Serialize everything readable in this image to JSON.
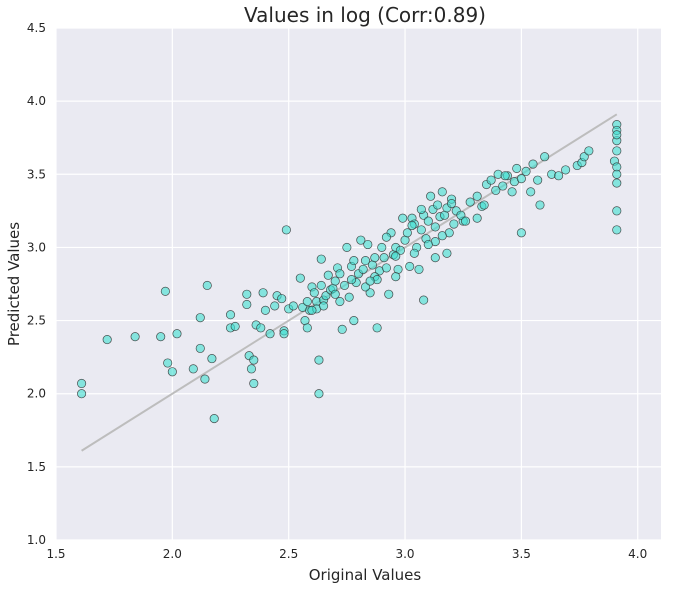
{
  "chart_data": {
    "type": "scatter",
    "title": "Values in log   (Corr:0.89)",
    "xlabel": "Original Values",
    "ylabel": "Predicted Values",
    "xlim": [
      1.5,
      4.1
    ],
    "ylim": [
      1.0,
      4.5
    ],
    "xticks": [
      "1.5",
      "2.0",
      "2.5",
      "3.0",
      "3.5",
      "4.0"
    ],
    "yticks": [
      "1.0",
      "1.5",
      "2.0",
      "2.5",
      "3.0",
      "3.5",
      "4.0",
      "4.5"
    ],
    "grid": true,
    "legend": "none",
    "point_color": "#40e0d0",
    "point_edge_color": "#333333",
    "plot_background": "#eaeaf2",
    "fit_line_color": "#bdbdbd",
    "fit_line": {
      "x": [
        1.61,
        3.91
      ],
      "y": [
        1.61,
        3.91
      ]
    },
    "series": [
      {
        "x": [
          1.61,
          1.61,
          1.72,
          1.84,
          1.95,
          1.97,
          1.98,
          2.0,
          2.02,
          2.09,
          2.12,
          2.12,
          2.14,
          2.15,
          2.17,
          2.18,
          2.25,
          2.25,
          2.27,
          2.32,
          2.32,
          2.33,
          2.34,
          2.35,
          2.35,
          2.36,
          2.38,
          2.39,
          2.4,
          2.42,
          2.44,
          2.45,
          2.47,
          2.48,
          2.48,
          2.49,
          2.5,
          2.52,
          2.55,
          2.56,
          2.57,
          2.58,
          2.58,
          2.59,
          2.6,
          2.61,
          2.62,
          2.62,
          2.63,
          2.63,
          2.64,
          2.64,
          2.65,
          2.66,
          2.67,
          2.68,
          2.69,
          2.7,
          2.71,
          2.72,
          2.73,
          2.74,
          2.75,
          2.76,
          2.77,
          2.78,
          2.79,
          2.8,
          2.81,
          2.82,
          2.83,
          2.84,
          2.85,
          2.86,
          2.87,
          2.88,
          2.89,
          2.9,
          2.91,
          2.92,
          2.93,
          2.94,
          2.95,
          2.96,
          2.97,
          2.98,
          2.99,
          3.0,
          3.01,
          3.02,
          3.03,
          3.04,
          3.05,
          3.06,
          3.07,
          3.08,
          3.09,
          3.1,
          3.11,
          3.12,
          3.13,
          3.14,
          3.15,
          3.16,
          3.17,
          3.18,
          3.19,
          3.2,
          3.21,
          3.22,
          3.25,
          3.28,
          3.31,
          3.31,
          3.33,
          3.35,
          3.37,
          3.39,
          3.4,
          3.42,
          3.44,
          3.46,
          3.47,
          3.48,
          3.5,
          3.5,
          3.52,
          3.54,
          3.55,
          3.57,
          3.58,
          3.6,
          3.63,
          3.66,
          3.69,
          3.74,
          3.76,
          3.77,
          3.79,
          3.9,
          3.91,
          3.91,
          3.91,
          3.91,
          3.91,
          3.91,
          3.91,
          3.91,
          3.91,
          3.91,
          2.78,
          2.83,
          2.87,
          2.92,
          2.96,
          3.03,
          3.07,
          3.13,
          3.18,
          3.08,
          3.13,
          2.88,
          2.96,
          2.72,
          2.65,
          2.6,
          2.7,
          2.77,
          2.85,
          3.04,
          3.1,
          3.16,
          3.2,
          3.24,
          3.26,
          3.34,
          3.43
        ],
        "y": [
          2.07,
          2.0,
          2.37,
          2.39,
          2.39,
          2.7,
          2.21,
          2.15,
          2.41,
          2.17,
          2.31,
          2.52,
          2.1,
          2.74,
          2.24,
          1.83,
          2.54,
          2.45,
          2.46,
          2.68,
          2.61,
          2.26,
          2.17,
          2.07,
          2.23,
          2.47,
          2.45,
          2.69,
          2.57,
          2.41,
          2.6,
          2.67,
          2.65,
          2.43,
          2.41,
          3.12,
          2.58,
          2.6,
          2.79,
          2.59,
          2.5,
          2.63,
          2.45,
          2.57,
          2.73,
          2.69,
          2.63,
          2.58,
          2.0,
          2.23,
          2.74,
          2.92,
          2.64,
          2.67,
          2.81,
          2.71,
          2.72,
          2.77,
          2.86,
          2.82,
          2.44,
          2.74,
          3.0,
          2.66,
          2.87,
          2.91,
          2.76,
          2.82,
          3.05,
          2.85,
          2.91,
          3.02,
          2.69,
          2.88,
          2.93,
          2.45,
          2.84,
          3.0,
          2.93,
          2.86,
          2.68,
          3.1,
          2.95,
          3.0,
          2.85,
          2.98,
          3.2,
          3.05,
          3.1,
          2.87,
          3.2,
          3.16,
          3.0,
          2.85,
          3.12,
          3.22,
          3.06,
          3.18,
          3.35,
          3.26,
          3.14,
          3.29,
          3.21,
          3.38,
          3.22,
          3.27,
          3.1,
          3.33,
          3.16,
          3.25,
          3.18,
          3.31,
          3.35,
          3.2,
          3.28,
          3.43,
          3.46,
          3.39,
          3.5,
          3.42,
          3.49,
          3.38,
          3.45,
          3.54,
          3.1,
          3.47,
          3.52,
          3.38,
          3.57,
          3.46,
          3.29,
          3.62,
          3.5,
          3.49,
          3.53,
          3.56,
          3.58,
          3.62,
          3.66,
          3.59,
          3.84,
          3.8,
          3.73,
          3.66,
          3.55,
          3.5,
          3.44,
          3.25,
          3.12,
          3.77,
          2.5,
          2.73,
          2.8,
          3.07,
          2.94,
          3.15,
          3.26,
          3.04,
          2.96,
          2.64,
          2.93,
          2.78,
          2.8,
          2.63,
          2.6,
          2.57,
          2.68,
          2.78,
          2.77,
          2.96,
          3.02,
          3.08,
          3.3,
          3.22,
          3.18,
          3.29,
          3.49
        ]
      }
    ]
  }
}
